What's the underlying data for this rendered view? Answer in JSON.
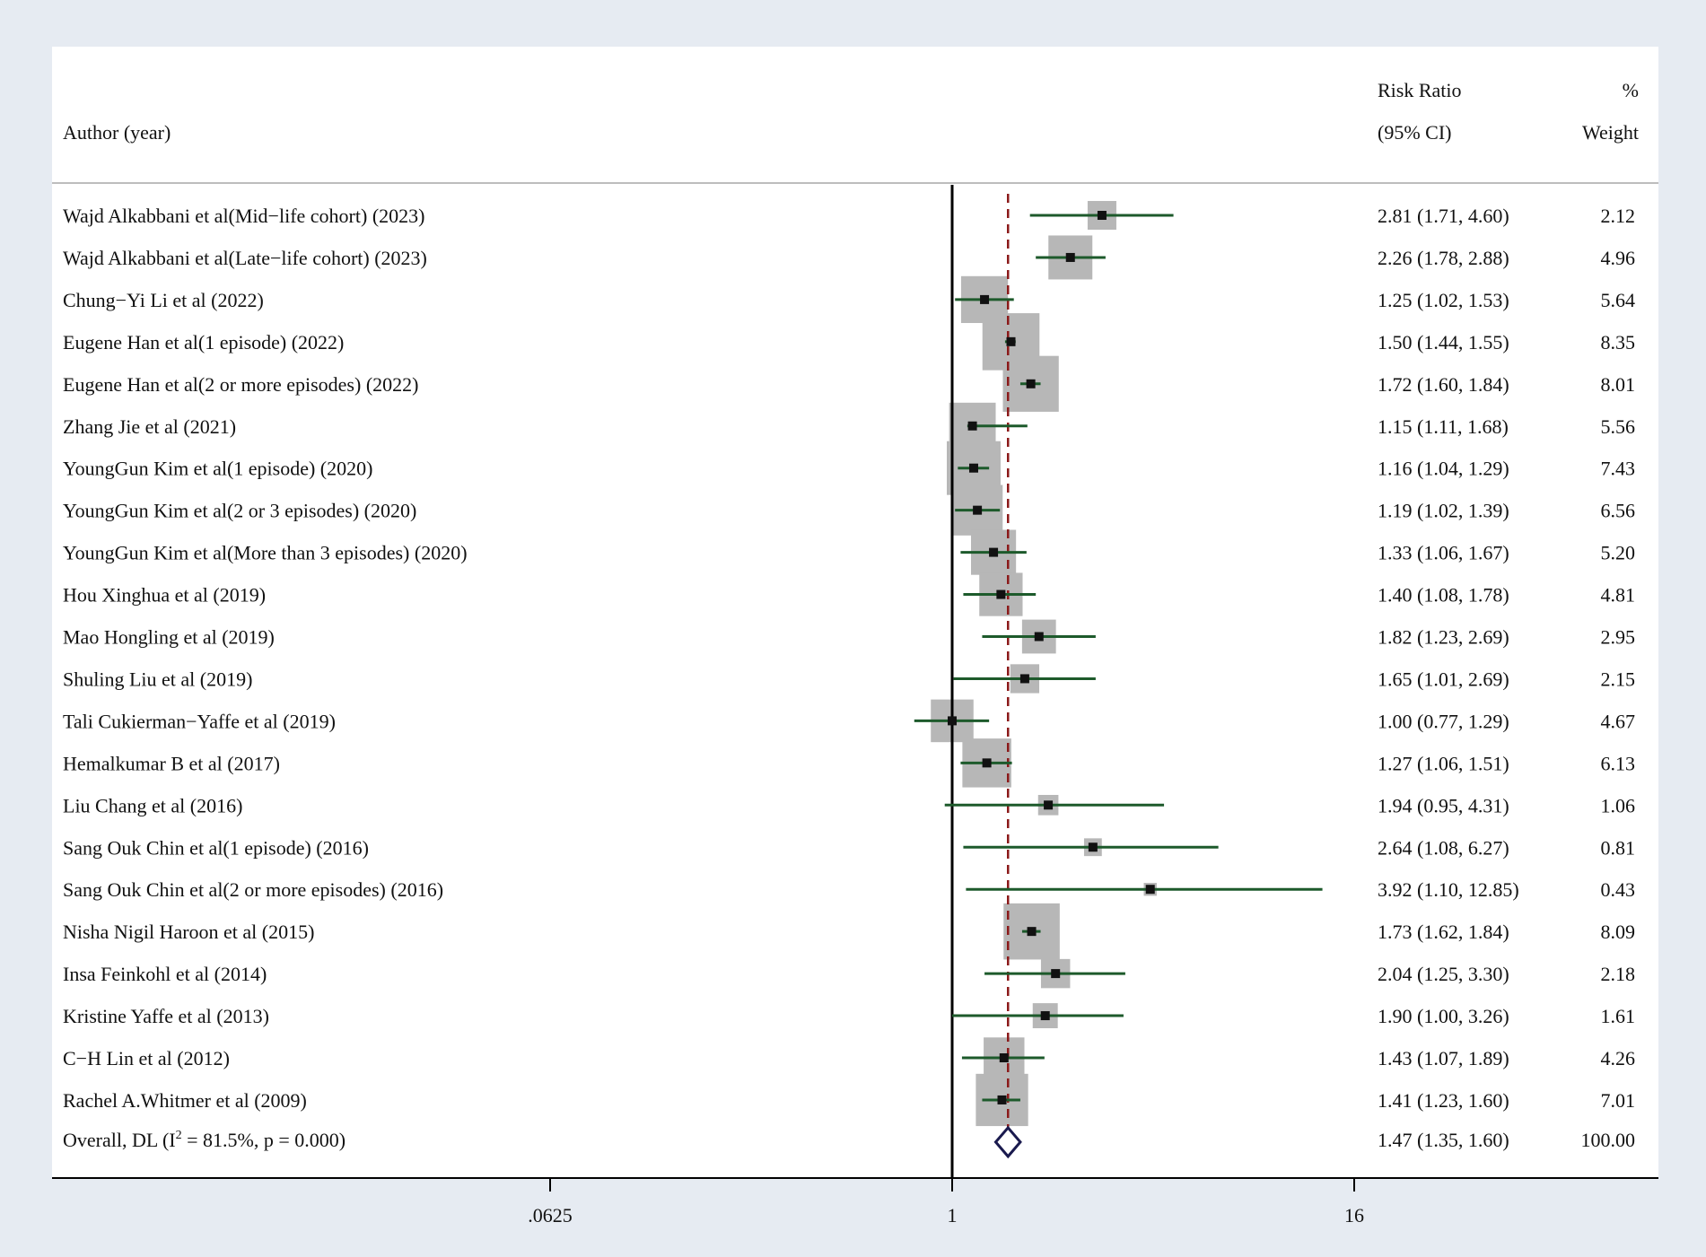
{
  "chart_data": {
    "type": "forest",
    "columns": {
      "author_header": "Author (year)",
      "rr_header_line1": "Risk Ratio",
      "rr_header_line2": "(95% CI)",
      "weight_header_line1": "%",
      "weight_header_line2": "Weight"
    },
    "xscale": "log2",
    "xlim": [
      0.0625,
      16
    ],
    "reference_value": 1,
    "xticks": [
      {
        "value": 0.0625,
        "label": ".0625"
      },
      {
        "value": 1,
        "label": "1"
      },
      {
        "value": 16,
        "label": "16"
      }
    ],
    "studies": [
      {
        "label": "Wajd Alkabbani et al(Mid−life cohort) (2023)",
        "rr": 2.81,
        "lo": 1.71,
        "hi": 4.6,
        "ci_text": "2.81 (1.71, 4.60)",
        "weight": 2.12,
        "weight_text": "2.12"
      },
      {
        "label": "Wajd Alkabbani et al(Late−life cohort) (2023)",
        "rr": 2.26,
        "lo": 1.78,
        "hi": 2.88,
        "ci_text": "2.26 (1.78, 2.88)",
        "weight": 4.96,
        "weight_text": "4.96"
      },
      {
        "label": "Chung−Yi Li et al (2022)",
        "rr": 1.25,
        "lo": 1.02,
        "hi": 1.53,
        "ci_text": "1.25 (1.02, 1.53)",
        "weight": 5.64,
        "weight_text": "5.64"
      },
      {
        "label": "Eugene Han et al(1 episode) (2022)",
        "rr": 1.5,
        "lo": 1.44,
        "hi": 1.55,
        "ci_text": "1.50 (1.44, 1.55)",
        "weight": 8.35,
        "weight_text": "8.35"
      },
      {
        "label": "Eugene Han et al(2 or more episodes) (2022)",
        "rr": 1.72,
        "lo": 1.6,
        "hi": 1.84,
        "ci_text": "1.72 (1.60, 1.84)",
        "weight": 8.01,
        "weight_text": "8.01"
      },
      {
        "label": "Zhang Jie et al (2021)",
        "rr": 1.15,
        "lo": 1.11,
        "hi": 1.68,
        "ci_text": "1.15 (1.11, 1.68)",
        "weight": 5.56,
        "weight_text": "5.56"
      },
      {
        "label": "YoungGun Kim et al(1 episode) (2020)",
        "rr": 1.16,
        "lo": 1.04,
        "hi": 1.29,
        "ci_text": "1.16 (1.04, 1.29)",
        "weight": 7.43,
        "weight_text": "7.43"
      },
      {
        "label": "YoungGun Kim et al(2 or 3 episodes) (2020)",
        "rr": 1.19,
        "lo": 1.02,
        "hi": 1.39,
        "ci_text": "1.19 (1.02, 1.39)",
        "weight": 6.56,
        "weight_text": "6.56"
      },
      {
        "label": "YoungGun Kim et al(More than 3 episodes) (2020)",
        "rr": 1.33,
        "lo": 1.06,
        "hi": 1.67,
        "ci_text": "1.33 (1.06, 1.67)",
        "weight": 5.2,
        "weight_text": "5.20"
      },
      {
        "label": "Hou Xinghua et al (2019)",
        "rr": 1.4,
        "lo": 1.08,
        "hi": 1.78,
        "ci_text": "1.40 (1.08, 1.78)",
        "weight": 4.81,
        "weight_text": "4.81"
      },
      {
        "label": "Mao Hongling et al (2019)",
        "rr": 1.82,
        "lo": 1.23,
        "hi": 2.69,
        "ci_text": "1.82 (1.23, 2.69)",
        "weight": 2.95,
        "weight_text": "2.95"
      },
      {
        "label": "Shuling Liu et al (2019)",
        "rr": 1.65,
        "lo": 1.01,
        "hi": 2.69,
        "ci_text": "1.65 (1.01, 2.69)",
        "weight": 2.15,
        "weight_text": "2.15"
      },
      {
        "label": "Tali Cukierman−Yaffe et al (2019)",
        "rr": 1.0,
        "lo": 0.77,
        "hi": 1.29,
        "ci_text": "1.00 (0.77, 1.29)",
        "weight": 4.67,
        "weight_text": "4.67"
      },
      {
        "label": "Hemalkumar B et al (2017)",
        "rr": 1.27,
        "lo": 1.06,
        "hi": 1.51,
        "ci_text": "1.27 (1.06, 1.51)",
        "weight": 6.13,
        "weight_text": "6.13"
      },
      {
        "label": "Liu Chang et al (2016)",
        "rr": 1.94,
        "lo": 0.95,
        "hi": 4.31,
        "ci_text": "1.94 (0.95, 4.31)",
        "weight": 1.06,
        "weight_text": "1.06"
      },
      {
        "label": "Sang Ouk Chin et al(1 episode) (2016)",
        "rr": 2.64,
        "lo": 1.08,
        "hi": 6.27,
        "ci_text": "2.64 (1.08, 6.27)",
        "weight": 0.81,
        "weight_text": "0.81"
      },
      {
        "label": "Sang Ouk Chin et al(2 or more episodes) (2016)",
        "rr": 3.92,
        "lo": 1.1,
        "hi": 12.85,
        "ci_text": "3.92 (1.10, 12.85)",
        "weight": 0.43,
        "weight_text": "0.43"
      },
      {
        "label": "Nisha Nigil Haroon et al (2015)",
        "rr": 1.73,
        "lo": 1.62,
        "hi": 1.84,
        "ci_text": "1.73 (1.62, 1.84)",
        "weight": 8.09,
        "weight_text": "8.09"
      },
      {
        "label": "Insa Feinkohl et al (2014)",
        "rr": 2.04,
        "lo": 1.25,
        "hi": 3.3,
        "ci_text": "2.04 (1.25, 3.30)",
        "weight": 2.18,
        "weight_text": "2.18"
      },
      {
        "label": "Kristine Yaffe et al (2013)",
        "rr": 1.9,
        "lo": 1.0,
        "hi": 3.26,
        "ci_text": "1.90 (1.00, 3.26)",
        "weight": 1.61,
        "weight_text": "1.61"
      },
      {
        "label": "C−H Lin et al (2012)",
        "rr": 1.43,
        "lo": 1.07,
        "hi": 1.89,
        "ci_text": "1.43 (1.07, 1.89)",
        "weight": 4.26,
        "weight_text": "4.26"
      },
      {
        "label": "Rachel A.Whitmer et al (2009)",
        "rr": 1.41,
        "lo": 1.23,
        "hi": 1.6,
        "ci_text": "1.41 (1.23, 1.60)",
        "weight": 7.01,
        "weight_text": "7.01"
      }
    ],
    "overall": {
      "label_prefix": "Overall, DL (I",
      "label_sup": "2",
      "label_suffix": " = 81.5%, p = 0.000)",
      "rr": 1.47,
      "lo": 1.35,
      "hi": 1.6,
      "ci_text": "1.47 (1.35, 1.60)",
      "weight_text": "100.00"
    },
    "colors": {
      "background": "#e6ebf2",
      "panel": "#ffffff",
      "ci_line": "#1d5a2b",
      "weight_box": "#b7b7b7",
      "point": "#111111",
      "null_line": "#000000",
      "overall_line": "#8b1a1a",
      "diamond": "#1a1a4e",
      "divider": "#bdbdbd"
    }
  }
}
